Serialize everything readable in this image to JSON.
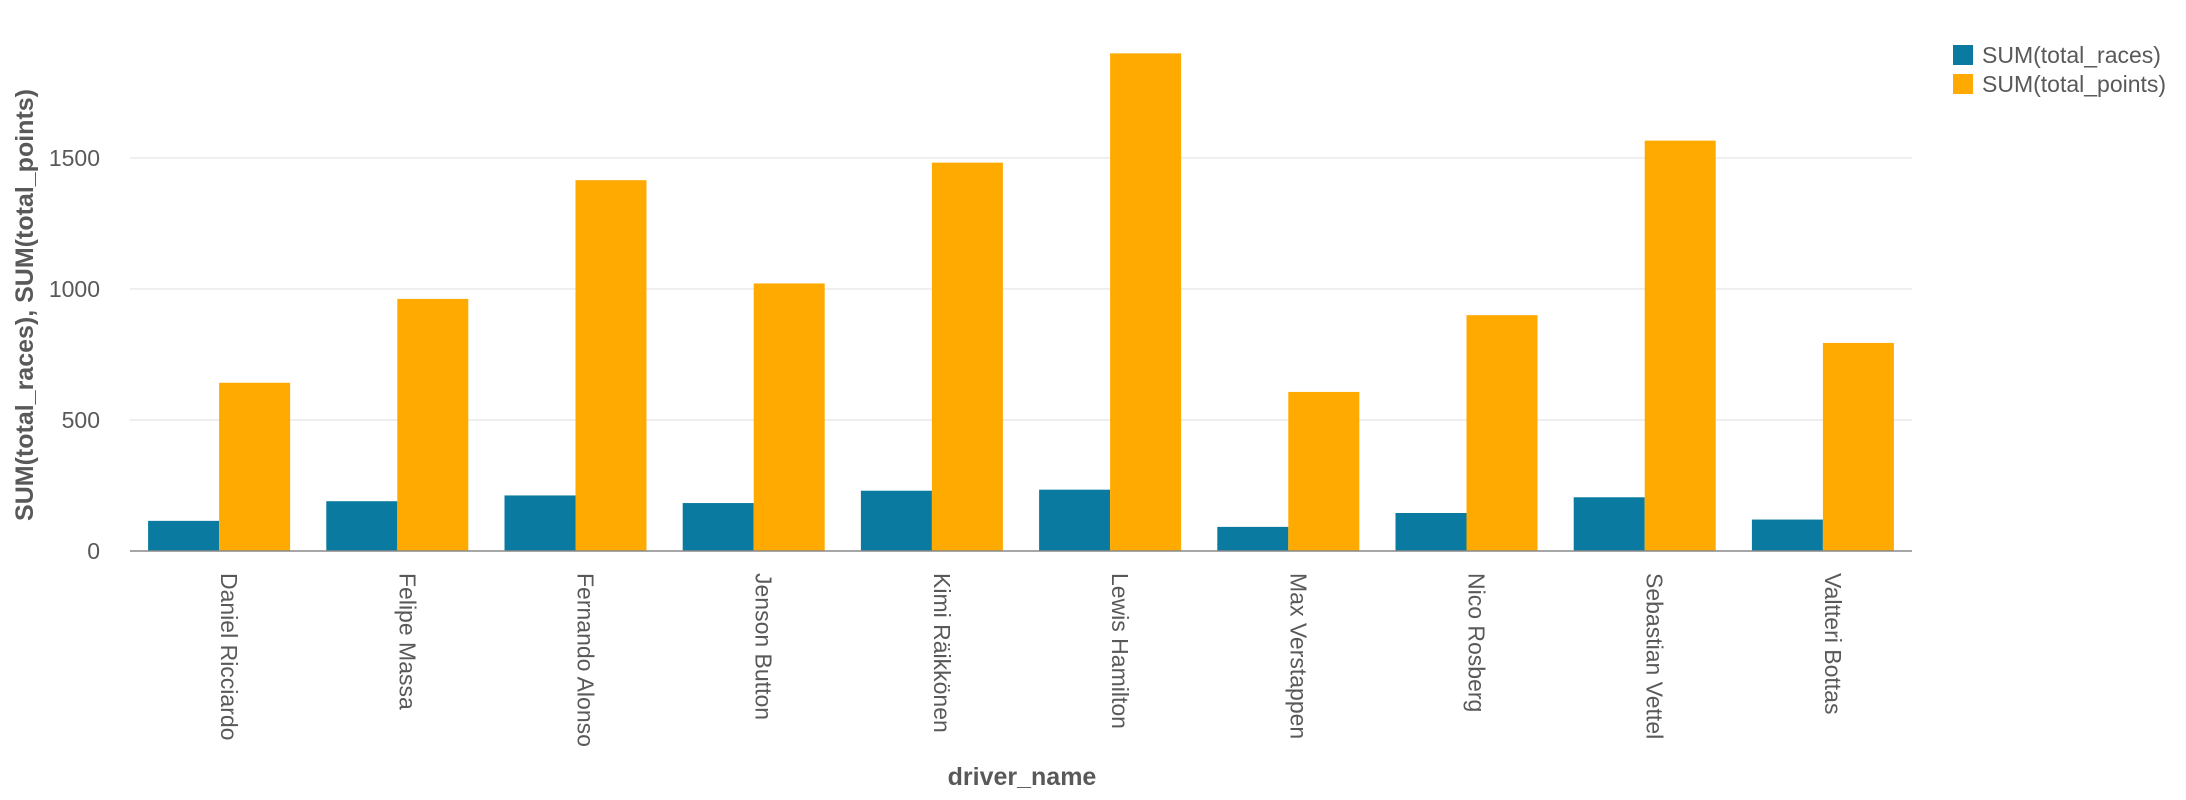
{
  "chart_data": {
    "type": "bar",
    "categories": [
      "Daniel Ricciardo",
      "Felipe Massa",
      "Fernando Alonso",
      "Jenson Button",
      "Kimi Räikkönen",
      "Lewis Hamilton",
      "Max Verstappen",
      "Nico Rosberg",
      "Sebastian Vettel",
      "Valtteri Bottas"
    ],
    "series": [
      {
        "name": "SUM(total_races)",
        "color": "#0a7aa0",
        "values": [
          115,
          190,
          212,
          183,
          230,
          234,
          92,
          145,
          205,
          120
        ]
      },
      {
        "name": "SUM(total_points)",
        "color": "#ffaa00",
        "values": [
          642,
          962,
          1415,
          1021,
          1482,
          1899,
          607,
          900,
          1566,
          794
        ]
      }
    ],
    "xlabel": "driver_name",
    "ylabel": "SUM(total_races), SUM(total_points)",
    "yticks": [
      0,
      500,
      1000,
      1500
    ],
    "ylim": [
      0,
      1950
    ],
    "grid": true,
    "legend_position": "top-right"
  }
}
